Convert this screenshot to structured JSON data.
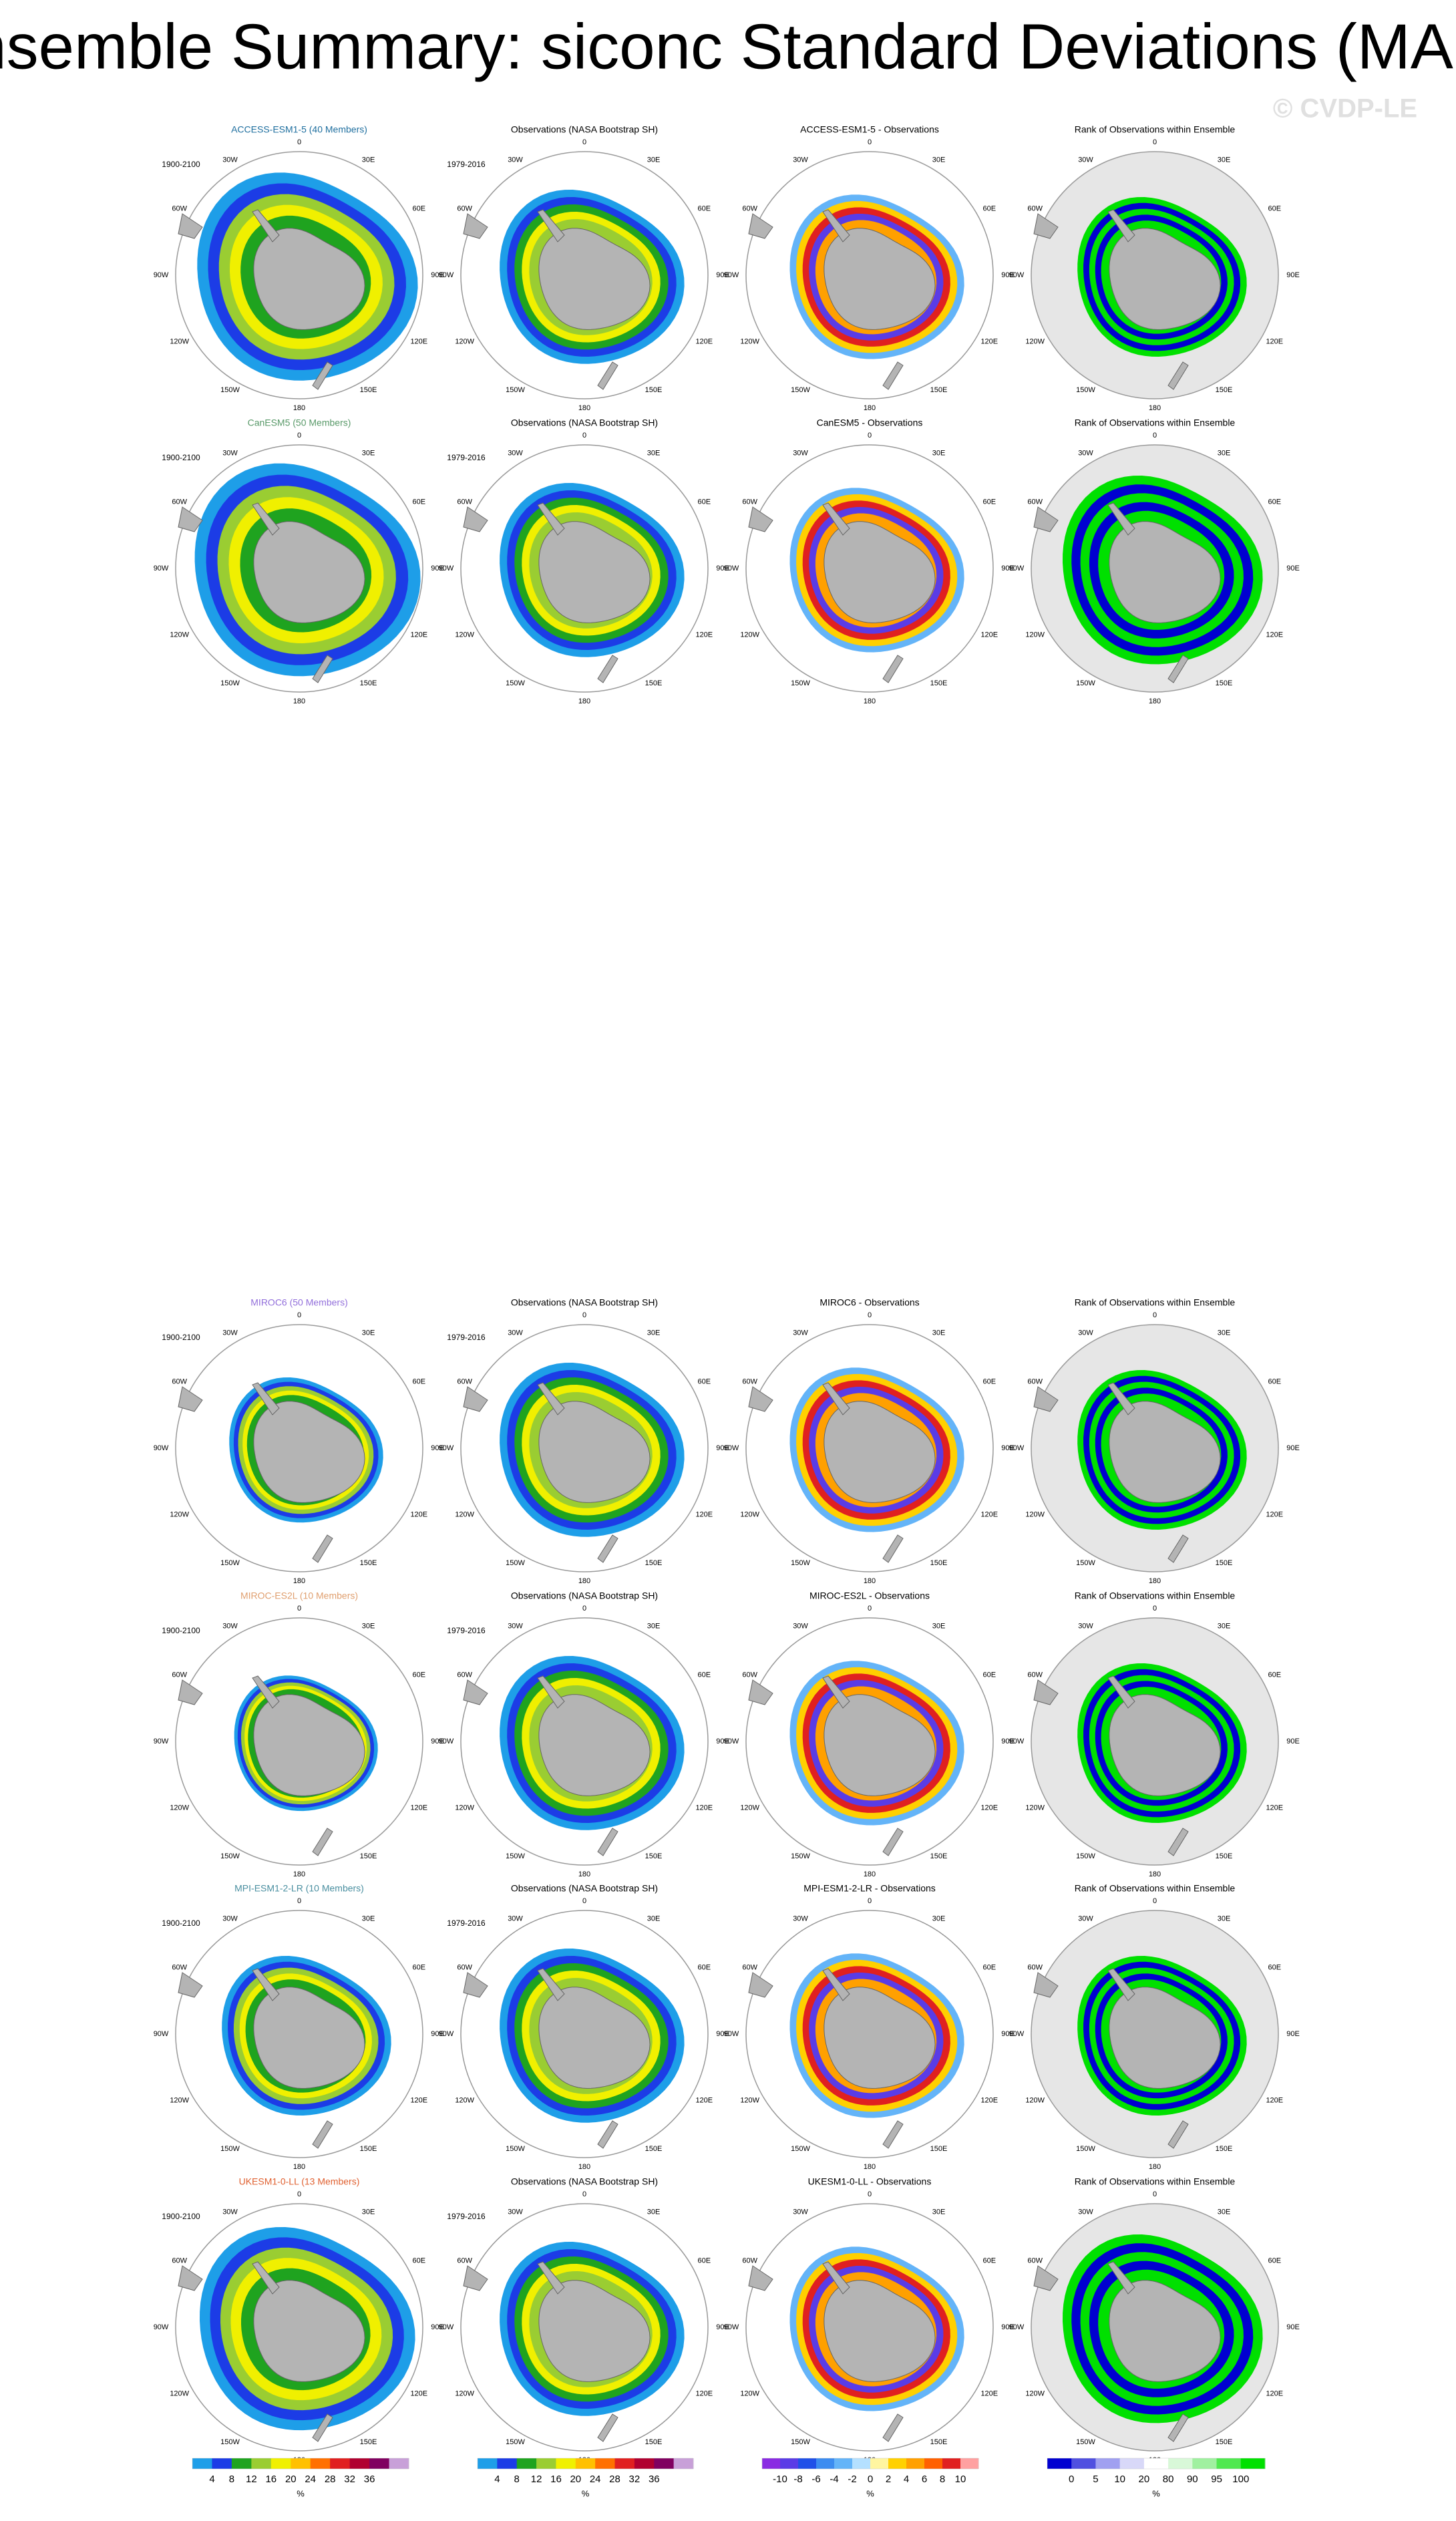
{
  "title": "Ensemble Summary: siconc Standard Deviations (MAM)",
  "watermark": "© CVDP-LE",
  "longitude_labels": [
    "0",
    "30E",
    "60E",
    "90E",
    "120E",
    "150E",
    "180",
    "150W",
    "120W",
    "90W",
    "60W",
    "30W"
  ],
  "rows": [
    {
      "title_color": "#1f6f9f",
      "panels": [
        {
          "title": "ACCESS-ESM1-5 (40 Members)",
          "period": "1900-2100"
        },
        {
          "title": "Observations (NASA Bootstrap SH)",
          "period": "1979-2016"
        },
        {
          "title": "ACCESS-ESM1-5 - Observations"
        },
        {
          "title": "Rank of Observations within Ensemble"
        }
      ]
    },
    {
      "title_color": "#5a9a6a",
      "panels": [
        {
          "title": "CanESM5 (50 Members)",
          "period": "1900-2100"
        },
        {
          "title": "Observations (NASA Bootstrap SH)",
          "period": "1979-2016"
        },
        {
          "title": "CanESM5 - Observations"
        },
        {
          "title": "Rank of Observations within Ensemble"
        }
      ]
    },
    {
      "title_color": "#9370db",
      "panels": [
        {
          "title": "MIROC6 (50 Members)",
          "period": "1900-2100"
        },
        {
          "title": "Observations (NASA Bootstrap SH)",
          "period": "1979-2016"
        },
        {
          "title": "MIROC6 - Observations"
        },
        {
          "title": "Rank of Observations within Ensemble"
        }
      ]
    },
    {
      "title_color": "#e0a070",
      "panels": [
        {
          "title": "MIROC-ES2L (10 Members)",
          "period": "1900-2100"
        },
        {
          "title": "Observations (NASA Bootstrap SH)",
          "period": "1979-2016"
        },
        {
          "title": "MIROC-ES2L - Observations"
        },
        {
          "title": "Rank of Observations within Ensemble"
        }
      ]
    },
    {
      "title_color": "#4a8fa0",
      "panels": [
        {
          "title": "MPI-ESM1-2-LR (10 Members)",
          "period": "1900-2100"
        },
        {
          "title": "Observations (NASA Bootstrap SH)",
          "period": "1979-2016"
        },
        {
          "title": "MPI-ESM1-2-LR - Observations"
        },
        {
          "title": "Rank of Observations within Ensemble"
        }
      ]
    },
    {
      "title_color": "#e06030",
      "panels": [
        {
          "title": "UKESM1-0-LL (13 Members)",
          "period": "1900-2100"
        },
        {
          "title": "Observations (NASA Bootstrap SH)",
          "period": "1979-2016"
        },
        {
          "title": "UKESM1-0-LL - Observations"
        },
        {
          "title": "Rank of Observations within Ensemble"
        }
      ]
    }
  ],
  "colorbars": [
    {
      "colors": [
        "#1e9ee8",
        "#1c3ce6",
        "#1fa31f",
        "#9acd32",
        "#f0f000",
        "#ffc000",
        "#ff7000",
        "#e02020",
        "#b00030",
        "#800060",
        "#c8a0d8"
      ],
      "ticks": [
        4,
        8,
        12,
        16,
        20,
        24,
        28,
        32,
        36
      ],
      "unit": "%"
    },
    {
      "colors": [
        "#1e9ee8",
        "#1c3ce6",
        "#1fa31f",
        "#9acd32",
        "#f0f000",
        "#ffc000",
        "#ff7000",
        "#e02020",
        "#b00030",
        "#800060",
        "#c8a0d8"
      ],
      "ticks": [
        4,
        8,
        12,
        16,
        20,
        24,
        28,
        32,
        36
      ],
      "unit": "%"
    },
    {
      "colors": [
        "#8a2be2",
        "#5a3ce6",
        "#2050e8",
        "#3c8cf0",
        "#64b4f8",
        "#b4e0ff",
        "#fff5a0",
        "#ffd000",
        "#ffa000",
        "#ff6000",
        "#e02020",
        "#ffa0a0"
      ],
      "ticks": [
        -10,
        -8,
        -6,
        -4,
        -2,
        0,
        2,
        4,
        6,
        8,
        10
      ],
      "unit": "%"
    },
    {
      "colors": [
        "#0000d0",
        "#5050e0",
        "#a0a0f0",
        "#d8d8f8",
        "#ffffff",
        "#d8f8d8",
        "#a0f0a0",
        "#50e850",
        "#00e000"
      ],
      "ticks": [
        0,
        5,
        10,
        20,
        80,
        90,
        95,
        100
      ],
      "unit": "%"
    }
  ]
}
